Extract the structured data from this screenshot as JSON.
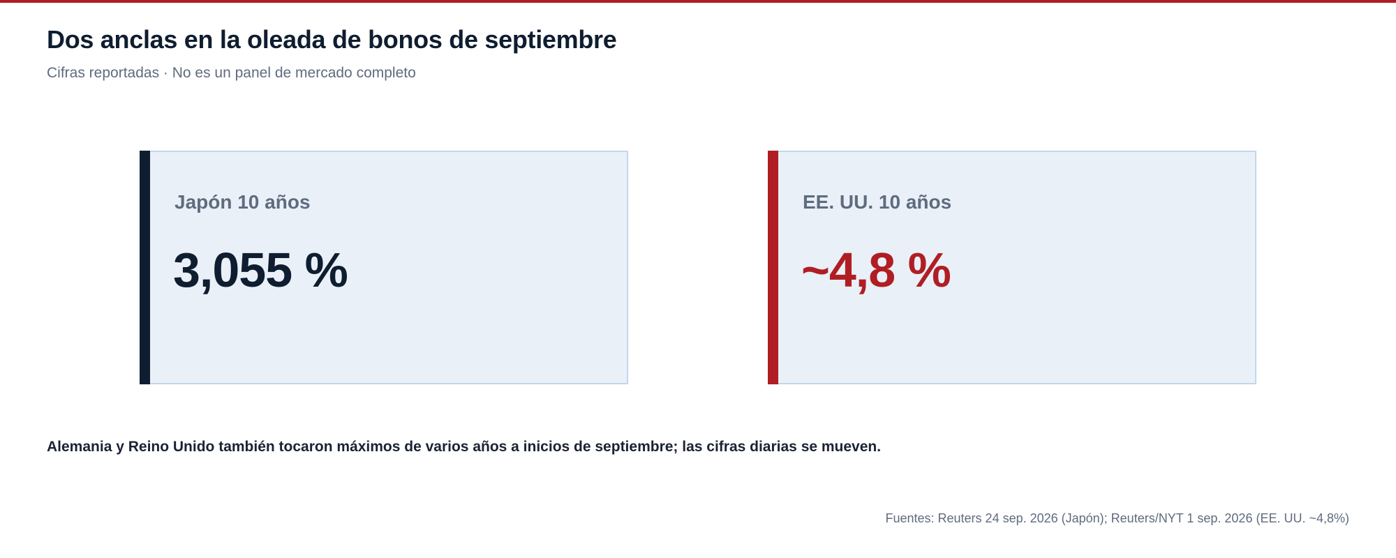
{
  "header": {
    "title": "Dos anclas en la oleada de bonos de septiembre",
    "subtitle": "Cifras reportadas · No es un panel de mercado completo"
  },
  "cards": [
    {
      "label": "Japón 10 años",
      "value": "3,055 %",
      "accent_color": "#0f1d30",
      "value_color": "#0f1d30"
    },
    {
      "label": "EE. UU. 10 años",
      "value": "~4,8 %",
      "accent_color": "#b01e23",
      "value_color": "#b01e23"
    }
  ],
  "note": "Alemania y Reino Unido también tocaron máximos de varios años a inicios de septiembre; las cifras diarias se mueven.",
  "sources": "Fuentes: Reuters 24 sep. 2026 (Japón); Reuters/NYT 1 sep. 2026 (EE. UU. ~4,8%)",
  "colors": {
    "top_rule": "#b01e23",
    "card_background": "#e9f0f8",
    "card_border": "#c3d7ea"
  }
}
